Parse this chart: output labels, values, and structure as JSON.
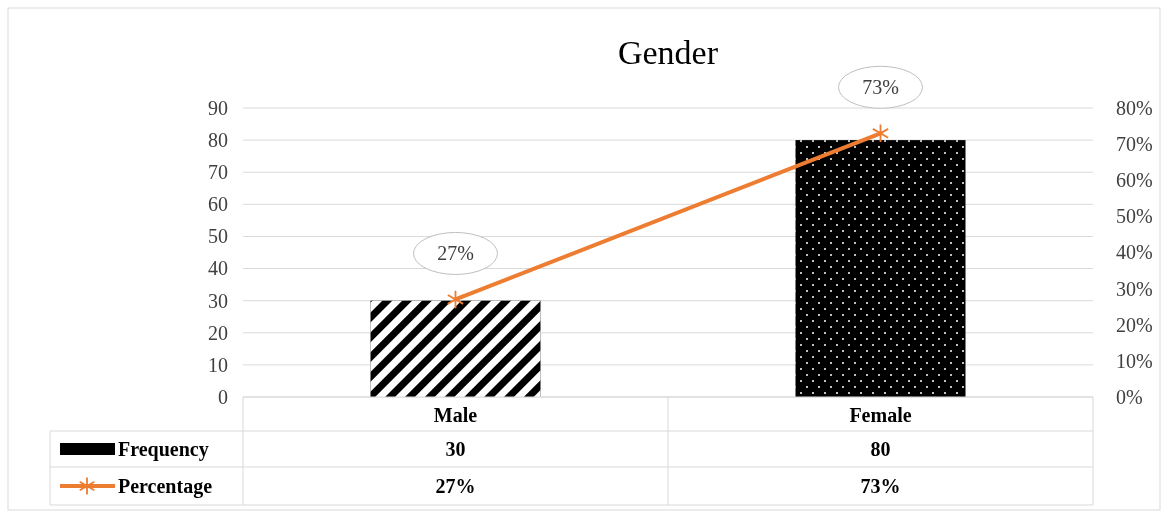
{
  "chart_data": {
    "type": "bar",
    "title": "Gender",
    "categories": [
      "Male",
      "Female"
    ],
    "series": [
      {
        "name": "Frequency",
        "color": "#000000",
        "values": [
          30,
          80
        ],
        "value_labels": [
          "30",
          "80"
        ]
      },
      {
        "name": "Percentage",
        "type": "line",
        "axis": "y2",
        "color": "#ed7d31",
        "marker": "cross",
        "values": [
          27,
          73
        ],
        "value_labels": [
          "27%",
          "73%"
        ]
      }
    ],
    "ylim": [
      0,
      90
    ],
    "yticks": [
      0,
      10,
      20,
      30,
      40,
      50,
      60,
      70,
      80,
      90
    ],
    "y2lim": [
      0,
      80
    ],
    "y2ticks": [
      {
        "value": 0,
        "label": "0%"
      },
      {
        "value": 10,
        "label": "10%"
      },
      {
        "value": 20,
        "label": "20%"
      },
      {
        "value": 30,
        "label": "30%"
      },
      {
        "value": 40,
        "label": "40%"
      },
      {
        "value": 50,
        "label": "50%"
      },
      {
        "value": 60,
        "label": "60%"
      },
      {
        "value": 70,
        "label": "70%"
      },
      {
        "value": 80,
        "label": "80%"
      }
    ],
    "grid": "y",
    "legend": "bottom",
    "data_labels": true
  }
}
